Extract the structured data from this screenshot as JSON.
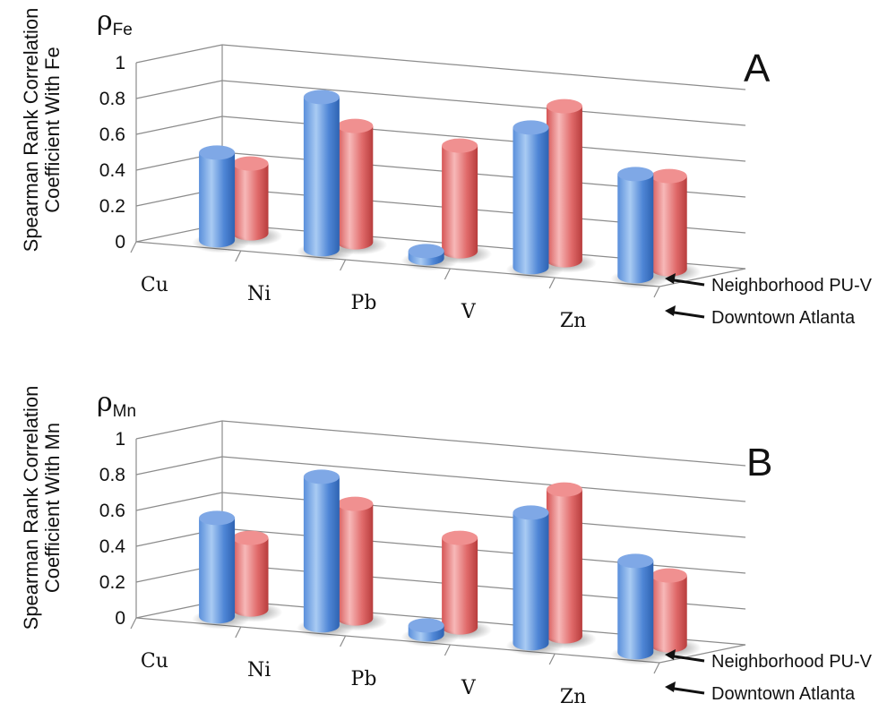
{
  "chart_data": [
    {
      "type": "bar",
      "panel_label": "A",
      "symbol": "ρ",
      "symbol_sub": "Fe",
      "ylabel": "Spearman Rank Correlation Coefficient With Fe",
      "ylim": [
        0,
        1
      ],
      "yticks": [
        "0",
        "0.2",
        "0.4",
        "0.6",
        "0.8",
        "1"
      ],
      "categories": [
        "Cu",
        "Ni",
        "Pb",
        "V",
        "Zn"
      ],
      "series": [
        {
          "name": "Downtown Atlanta",
          "values": [
            0.49,
            0.85,
            0.03,
            0.78,
            0.57
          ]
        },
        {
          "name": "Neighborhood PU-V",
          "values": [
            0.39,
            0.65,
            0.59,
            0.86,
            0.52
          ]
        }
      ]
    },
    {
      "type": "bar",
      "panel_label": "B",
      "symbol": "ρ",
      "symbol_sub": "Mn",
      "ylabel": "Spearman Rank Correlation Coefficient With Mn",
      "ylim": [
        0,
        1
      ],
      "yticks": [
        "0",
        "0.2",
        "0.4",
        "0.6",
        "0.8",
        "1"
      ],
      "categories": [
        "Cu",
        "Ni",
        "Pb",
        "V",
        "Zn"
      ],
      "series": [
        {
          "name": "Downtown Atlanta",
          "values": [
            0.55,
            0.83,
            0.05,
            0.73,
            0.51
          ]
        },
        {
          "name": "Neighborhood PU-V",
          "values": [
            0.4,
            0.64,
            0.5,
            0.82,
            0.39
          ]
        }
      ]
    }
  ],
  "colors": {
    "blue": "#4f86d6",
    "red": "#e06a6a",
    "axis": "#8c8c8c"
  }
}
